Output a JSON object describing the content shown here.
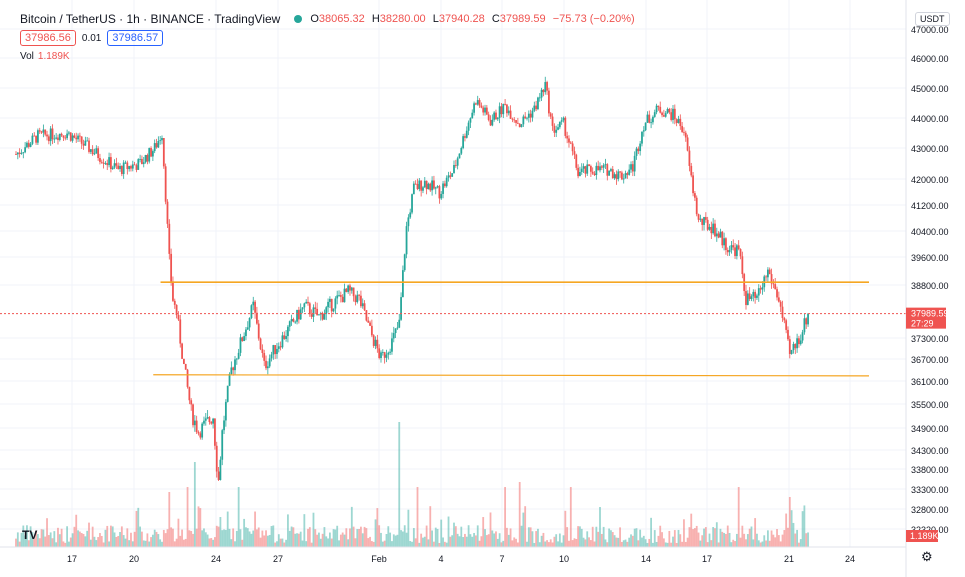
{
  "header": {
    "symbol": "Bitcoin / TetherUS · 1h · BINANCE · TradingView",
    "open_label": "O",
    "open": "38065.32",
    "high_label": "H",
    "high": "38280.00",
    "low_label": "L",
    "low": "37940.28",
    "close_label": "C",
    "close": "37989.59",
    "change": "−75.73 (−0.20%)",
    "bid": "37986.56",
    "spread": "0.01",
    "ask": "37986.57",
    "vol_label": "Vol",
    "vol_value": "1.189K",
    "currency": "USDT",
    "settings_icon": "gear-icon",
    "logo": "TV"
  },
  "colors": {
    "up": "#26a69a",
    "down": "#ef5350",
    "level": "#f5a623",
    "grid": "#f0f3fa",
    "price_tag": "#ef5350",
    "vol_tag": "#ef5350"
  },
  "chart_data": {
    "type": "candlestick",
    "y_ticks": [
      47000,
      46000,
      45000,
      44000,
      43000,
      42000,
      41200,
      40400,
      39600,
      38800,
      37300,
      36700,
      36100,
      35500,
      34900,
      34300,
      33800,
      33300,
      32800,
      32320
    ],
    "y_tick_labels": [
      "47000.00",
      "46000.00",
      "45000.00",
      "44000.00",
      "43000.00",
      "42000.00",
      "41200.00",
      "40400.00",
      "39600.00",
      "38800.00",
      "37300.00",
      "36700.00",
      "36100.00",
      "35500.00",
      "34900.00",
      "34300.00",
      "33800.00",
      "33300.00",
      "32800.00",
      "32320.00"
    ],
    "x_tick_labels": [
      "17",
      "20",
      "24",
      "27",
      "Feb",
      "4",
      "7",
      "10",
      "14",
      "17",
      "21",
      "24"
    ],
    "last_price": 37989.59,
    "last_price_label": "37989.59",
    "countdown_label": "27:29",
    "last_volume_label": "1.189K",
    "levels": [
      {
        "from_price": 38880,
        "to_price": 38880
      },
      {
        "from_price": 36270,
        "to_price": 36240
      }
    ],
    "price_path": [
      {
        "x": 0,
        "y": 42800
      },
      {
        "x": 3,
        "y": 43400
      },
      {
        "x": 7,
        "y": 43500
      },
      {
        "x": 10,
        "y": 43000
      },
      {
        "x": 14,
        "y": 42300
      },
      {
        "x": 17,
        "y": 42500
      },
      {
        "x": 19,
        "y": 43000
      },
      {
        "x": 20,
        "y": 43500
      },
      {
        "x": 20.5,
        "y": 41500
      },
      {
        "x": 21,
        "y": 39500
      },
      {
        "x": 21.5,
        "y": 38400
      },
      {
        "x": 22,
        "y": 38000
      },
      {
        "x": 23,
        "y": 36500
      },
      {
        "x": 24,
        "y": 35300
      },
      {
        "x": 25,
        "y": 34800
      },
      {
        "x": 26,
        "y": 35000
      },
      {
        "x": 27,
        "y": 35200
      },
      {
        "x": 27.7,
        "y": 33400
      },
      {
        "x": 28.3,
        "y": 34900
      },
      {
        "x": 29.5,
        "y": 36400
      },
      {
        "x": 31,
        "y": 37300
      },
      {
        "x": 32.5,
        "y": 38200
      },
      {
        "x": 34,
        "y": 36500
      },
      {
        "x": 35.5,
        "y": 37000
      },
      {
        "x": 37.5,
        "y": 37600
      },
      {
        "x": 39.5,
        "y": 38200
      },
      {
        "x": 41.5,
        "y": 37900
      },
      {
        "x": 43.5,
        "y": 38300
      },
      {
        "x": 45.5,
        "y": 38600
      },
      {
        "x": 47,
        "y": 38400
      },
      {
        "x": 48.5,
        "y": 37500
      },
      {
        "x": 50,
        "y": 36700
      },
      {
        "x": 51.5,
        "y": 37200
      },
      {
        "x": 52.5,
        "y": 37700
      },
      {
        "x": 53.5,
        "y": 40500
      },
      {
        "x": 54.5,
        "y": 41700
      },
      {
        "x": 56,
        "y": 41900
      },
      {
        "x": 58,
        "y": 41600
      },
      {
        "x": 60,
        "y": 42300
      },
      {
        "x": 61.5,
        "y": 43500
      },
      {
        "x": 63,
        "y": 44600
      },
      {
        "x": 65,
        "y": 43900
      },
      {
        "x": 67,
        "y": 44400
      },
      {
        "x": 69,
        "y": 43800
      },
      {
        "x": 71,
        "y": 44300
      },
      {
        "x": 72.5,
        "y": 45100
      },
      {
        "x": 73.5,
        "y": 43600
      },
      {
        "x": 75,
        "y": 43800
      },
      {
        "x": 77,
        "y": 42200
      },
      {
        "x": 79,
        "y": 42300
      },
      {
        "x": 81,
        "y": 42300
      },
      {
        "x": 83,
        "y": 42100
      },
      {
        "x": 84.5,
        "y": 42400
      },
      {
        "x": 86,
        "y": 43800
      },
      {
        "x": 88,
        "y": 44300
      },
      {
        "x": 90,
        "y": 44100
      },
      {
        "x": 91.5,
        "y": 43600
      },
      {
        "x": 92.5,
        "y": 42000
      },
      {
        "x": 93.5,
        "y": 40700
      },
      {
        "x": 95.5,
        "y": 40500
      },
      {
        "x": 97.5,
        "y": 39900
      },
      {
        "x": 99,
        "y": 39800
      },
      {
        "x": 100,
        "y": 38400
      },
      {
        "x": 101.5,
        "y": 38400
      },
      {
        "x": 103,
        "y": 39200
      },
      {
        "x": 104.5,
        "y": 38400
      },
      {
        "x": 106,
        "y": 36800
      },
      {
        "x": 107.5,
        "y": 37400
      },
      {
        "x": 108.5,
        "y": 37990
      }
    ],
    "x_range": [
      0,
      108.5
    ],
    "future_range": [
      108.5,
      116
    ]
  }
}
